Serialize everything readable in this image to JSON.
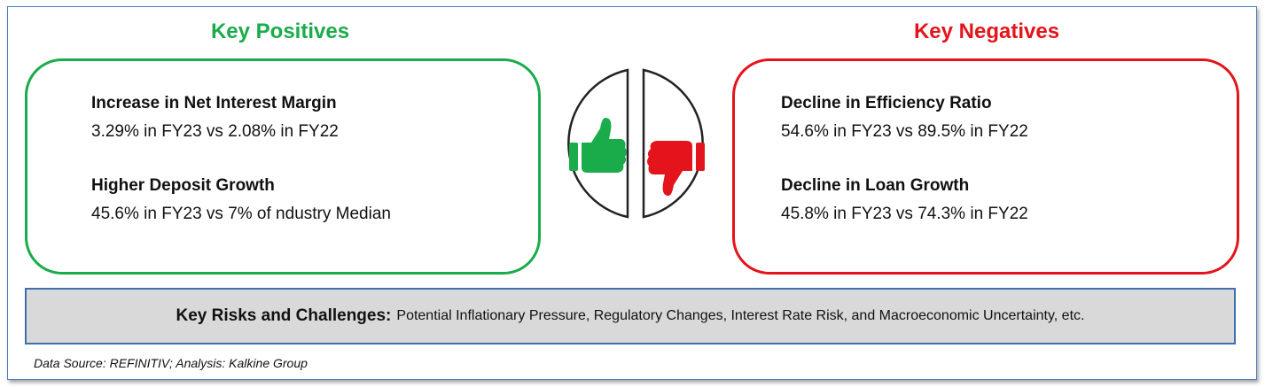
{
  "positives": {
    "title": "Key Positives",
    "items": [
      {
        "heading": "Increase in Net Interest Margin",
        "detail": "3.29% in FY23 vs 2.08% in FY22"
      },
      {
        "heading": "Higher Deposit Growth",
        "detail": "45.6% in FY23 vs 7% of ndustry Median"
      }
    ]
  },
  "negatives": {
    "title": "Key Negatives",
    "items": [
      {
        "heading": "Decline in Efficiency Ratio",
        "detail": "54.6% in FY23 vs 89.5% in FY22"
      },
      {
        "heading": "Decline in Loan Growth",
        "detail": "45.8% in FY23 vs 74.3% in FY22"
      }
    ]
  },
  "risks": {
    "label": "Key Risks and Challenges:",
    "text": "Potential Inflationary Pressure, Regulatory Changes, Interest Rate Risk, and Macroeconomic Uncertainty, etc."
  },
  "source": "Data Source: REFINITIV; Analysis: Kalkine Group"
}
